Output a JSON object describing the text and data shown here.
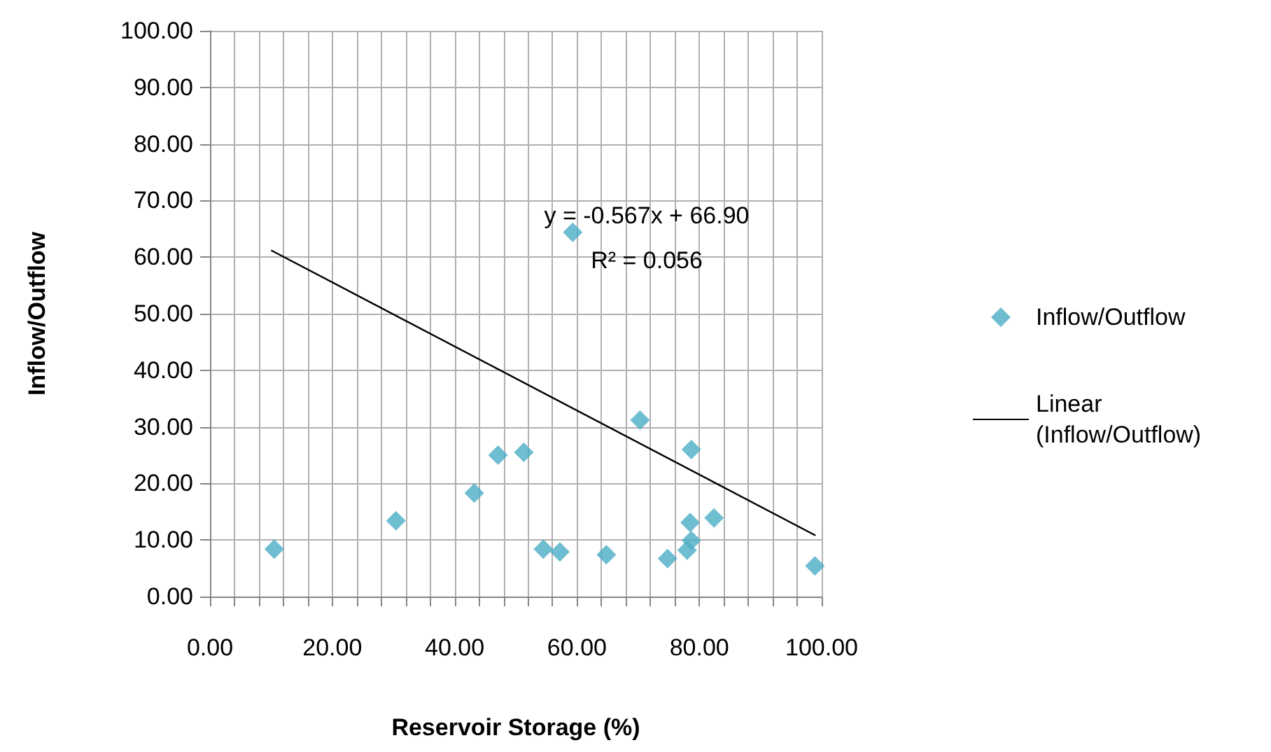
{
  "chart_data": {
    "type": "scatter",
    "xlabel": "Reservoir Storage (%)",
    "ylabel": "Inflow/Outflow",
    "series": [
      {
        "name": "Inflow/Outflow",
        "type": "scatter",
        "color": "#4bacc6",
        "marker": "diamond",
        "x": [
          10.5,
          30.4,
          43.2,
          47.1,
          51.3,
          54.5,
          57.2,
          64.8,
          59.3,
          70.3,
          74.8,
          78.0,
          78.5,
          78.7,
          78.7,
          82.4,
          98.9
        ],
        "values": [
          8.4,
          13.4,
          18.3,
          25.0,
          25.5,
          8.4,
          7.9,
          7.4,
          64.4,
          31.2,
          6.7,
          8.2,
          13.1,
          9.9,
          26.0,
          13.9,
          5.4
        ]
      },
      {
        "name": "Linear (Inflow/Outflow)",
        "type": "line",
        "color": "#000000",
        "marker": "none",
        "line_style": "solid",
        "x": [
          10,
          99
        ],
        "values": [
          61.2,
          10.8
        ]
      }
    ],
    "xlim": [
      0,
      100
    ],
    "ylim": [
      0,
      100
    ],
    "xticks": [
      {
        "value": 0,
        "label": "0.00"
      },
      {
        "value": 4,
        "label": null
      },
      {
        "value": 8,
        "label": null
      },
      {
        "value": 12,
        "label": null
      },
      {
        "value": 16,
        "label": null
      },
      {
        "value": 20,
        "label": "20.00"
      },
      {
        "value": 24,
        "label": null
      },
      {
        "value": 28,
        "label": null
      },
      {
        "value": 32,
        "label": null
      },
      {
        "value": 36,
        "label": null
      },
      {
        "value": 40,
        "label": "40.00"
      },
      {
        "value": 44,
        "label": null
      },
      {
        "value": 48,
        "label": null
      },
      {
        "value": 52,
        "label": null
      },
      {
        "value": 56,
        "label": null
      },
      {
        "value": 60,
        "label": "60.00"
      },
      {
        "value": 64,
        "label": null
      },
      {
        "value": 68,
        "label": null
      },
      {
        "value": 72,
        "label": null
      },
      {
        "value": 76,
        "label": null
      },
      {
        "value": 80,
        "label": "80.00"
      },
      {
        "value": 84,
        "label": null
      },
      {
        "value": 88,
        "label": null
      },
      {
        "value": 92,
        "label": null
      },
      {
        "value": 96,
        "label": null
      },
      {
        "value": 100,
        "label": "100.00"
      }
    ],
    "yticks": [
      {
        "value": 0,
        "label": "0.00"
      },
      {
        "value": 10,
        "label": "10.00"
      },
      {
        "value": 20,
        "label": "20.00"
      },
      {
        "value": 30,
        "label": "30.00"
      },
      {
        "value": 40,
        "label": "40.00"
      },
      {
        "value": 50,
        "label": "50.00"
      },
      {
        "value": 60,
        "label": "60.00"
      },
      {
        "value": 70,
        "label": "70.00"
      },
      {
        "value": 80,
        "label": "80.00"
      },
      {
        "value": 90,
        "label": "90.00"
      },
      {
        "value": 100,
        "label": "100.00"
      }
    ],
    "annotations": [
      "y = -0.567x + 66.90",
      "R² = 0.056"
    ],
    "grid": true,
    "legend": "right"
  }
}
